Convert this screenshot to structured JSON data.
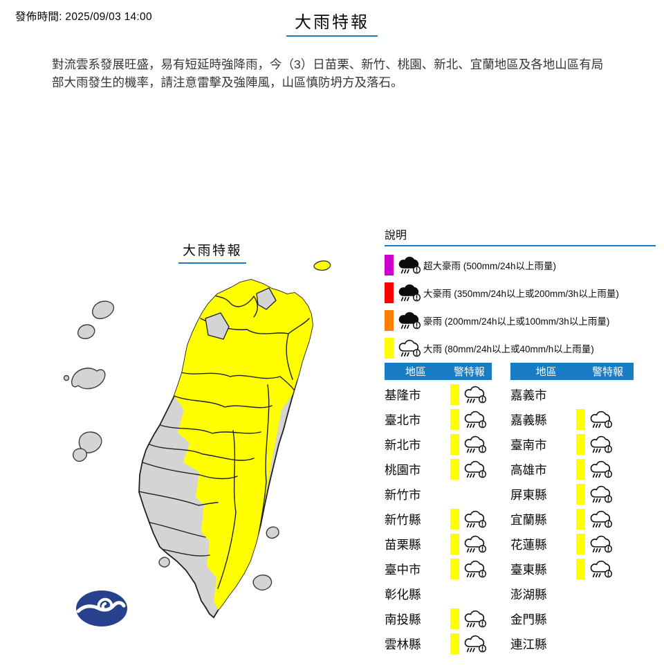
{
  "header": {
    "publish_time": "發佈時間: 2025/09/03 14:00",
    "title": "大雨特報"
  },
  "description": "對流雲系發展旺盛，易有短延時強降雨，今（3）日苗栗、新竹、桃園、新北、宜蘭地區及各地山區有局部大雨發生的機率，請注意雷擊及強陣風，山區慎防坍方及落石。",
  "map": {
    "label": "大雨特報",
    "logo": "cwb-swirl-logo"
  },
  "legend": {
    "heading": "說明",
    "items": [
      {
        "level": "torrential-rain-extreme",
        "color": "#cc00cc",
        "filled": true,
        "icon": "rain-cloud-exclamation-icon",
        "label": "超大豪雨 (500mm/24h以上雨量)"
      },
      {
        "level": "torrential-rain-heavy",
        "color": "#ff0000",
        "filled": true,
        "icon": "rain-cloud-exclamation-icon",
        "label": "大豪雨 (350mm/24h以上或200mm/3h以上雨量)"
      },
      {
        "level": "torrential-rain",
        "color": "#ff8000",
        "filled": true,
        "icon": "rain-cloud-exclamation-icon",
        "label": "豪雨 (200mm/24h以上或100mm/3h以上雨量)"
      },
      {
        "level": "heavy-rain",
        "color": "#ffff00",
        "filled": false,
        "icon": "rain-cloud-exclamation-icon",
        "label": "大雨 (80mm/24h以上或40mm/h以上雨量)"
      }
    ]
  },
  "tables": {
    "headers": [
      "地區",
      "警特報"
    ],
    "alert_color": "#ffff00",
    "alert_icon": "rain-cloud-exclamation-icon",
    "left": [
      {
        "region": "基隆市",
        "alert": true
      },
      {
        "region": "臺北市",
        "alert": true
      },
      {
        "region": "新北市",
        "alert": true
      },
      {
        "region": "桃園市",
        "alert": true
      },
      {
        "region": "新竹市",
        "alert": false
      },
      {
        "region": "新竹縣",
        "alert": true
      },
      {
        "region": "苗栗縣",
        "alert": true
      },
      {
        "region": "臺中市",
        "alert": true
      },
      {
        "region": "彰化縣",
        "alert": false
      },
      {
        "region": "南投縣",
        "alert": true
      },
      {
        "region": "雲林縣",
        "alert": true
      }
    ],
    "right": [
      {
        "region": "嘉義市",
        "alert": false
      },
      {
        "region": "嘉義縣",
        "alert": true
      },
      {
        "region": "臺南市",
        "alert": true
      },
      {
        "region": "高雄市",
        "alert": true
      },
      {
        "region": "屏東縣",
        "alert": true
      },
      {
        "region": "宜蘭縣",
        "alert": true
      },
      {
        "region": "花蓮縣",
        "alert": true
      },
      {
        "region": "臺東縣",
        "alert": true
      },
      {
        "region": "澎湖縣",
        "alert": false
      },
      {
        "region": "金門縣",
        "alert": false
      },
      {
        "region": "連江縣",
        "alert": false
      }
    ]
  },
  "colors": {
    "accent_blue": "#1a7dc4",
    "map_gray": "#d4d4d4",
    "map_border": "#1f1f1f",
    "logo_navy": "#27418c",
    "alert_yellow": "#ffff00"
  }
}
